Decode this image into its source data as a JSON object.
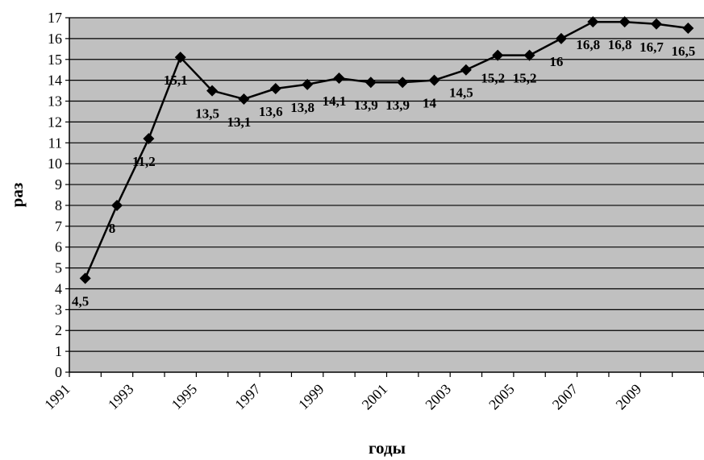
{
  "chart_data": {
    "type": "line",
    "xlabel": "годы",
    "ylabel": "раз",
    "ylim": [
      0,
      17
    ],
    "y_ticks": [
      "0",
      "1",
      "2",
      "3",
      "4",
      "5",
      "6",
      "7",
      "8",
      "9",
      "10",
      "11",
      "12",
      "13",
      "14",
      "15",
      "16",
      "17"
    ],
    "x_tick_labels": [
      "1991",
      "1993",
      "1995",
      "1997",
      "1999",
      "2001",
      "2003",
      "2005",
      "2007",
      "2009"
    ],
    "grid": true,
    "legend": "none",
    "colors": {
      "plot_background": "#c0c0c0",
      "line": "#000000",
      "gridline": "#000000"
    },
    "series": [
      {
        "x": [
          1991,
          1992,
          1993,
          1994,
          1995,
          1996,
          1997,
          1998,
          1999,
          2000,
          2001,
          2002,
          2003,
          2004,
          2005,
          2006,
          2007,
          2008,
          2009,
          2010
        ],
        "values": [
          4.5,
          8,
          11.2,
          15.1,
          13.5,
          13.1,
          13.6,
          13.8,
          14.1,
          13.9,
          13.9,
          14,
          14.5,
          15.2,
          15.2,
          16,
          16.8,
          16.8,
          16.7,
          16.5
        ],
        "labels": [
          "4,5",
          "8",
          "11,2",
          "15,1",
          "13,5",
          "13,1",
          "13,6",
          "13,8",
          "14,1",
          "13,9",
          "13,9",
          "14",
          "14,5",
          "15,2",
          "15,2",
          "16",
          "16,8",
          "16,8",
          "16,7",
          "16,5"
        ]
      }
    ]
  }
}
